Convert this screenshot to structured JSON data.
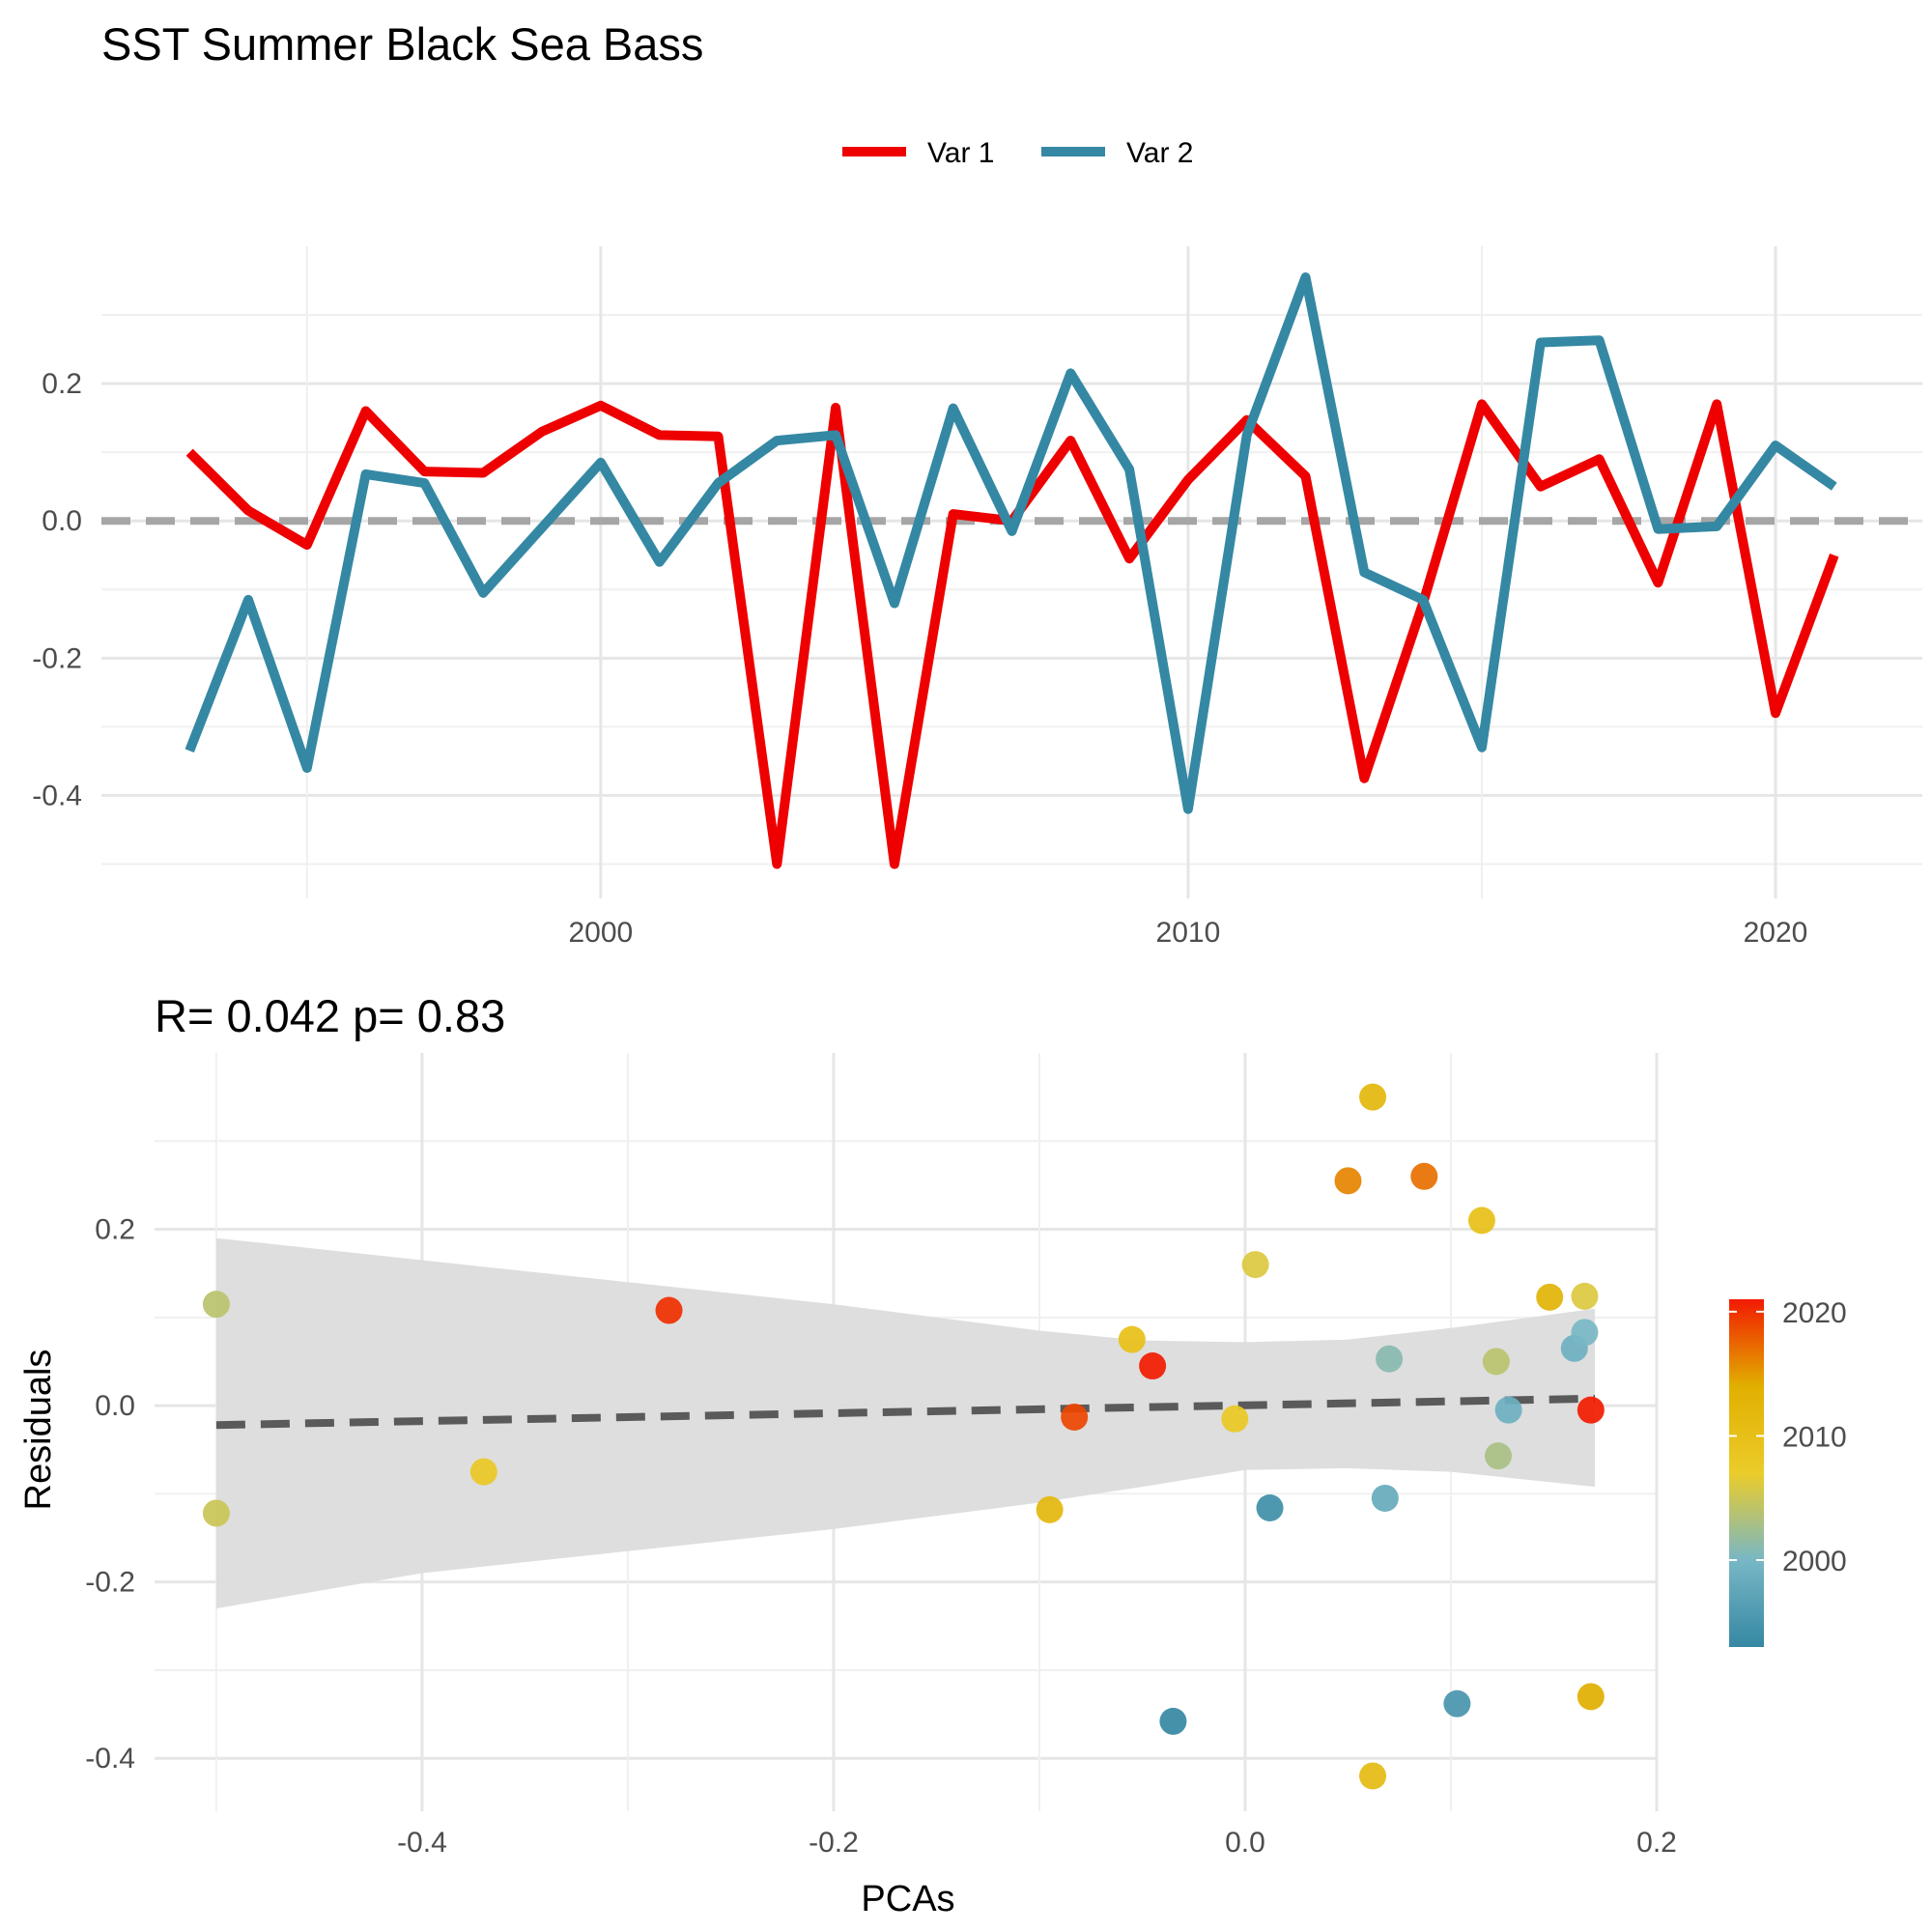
{
  "title": "SST Summer Black Sea Bass",
  "chart_data": [
    {
      "type": "line",
      "title": "SST Summer Black Sea Bass",
      "xlabel": "",
      "ylabel": "",
      "x": [
        1993,
        1994,
        1995,
        1996,
        1997,
        1998,
        1999,
        2000,
        2001,
        2002,
        2003,
        2004,
        2005,
        2006,
        2007,
        2008,
        2009,
        2010,
        2011,
        2012,
        2013,
        2014,
        2015,
        2016,
        2017,
        2018,
        2019,
        2020,
        2021
      ],
      "series": [
        {
          "name": "Var 1",
          "color": "#ee0000",
          "values": [
            0.1,
            0.015,
            -0.035,
            0.16,
            0.072,
            0.07,
            0.13,
            0.168,
            0.125,
            0.123,
            -0.5,
            0.165,
            -0.5,
            0.01,
            0.0,
            0.117,
            -0.055,
            0.06,
            0.147,
            0.065,
            -0.375,
            -0.12,
            0.17,
            0.05,
            0.09,
            -0.09,
            0.17,
            -0.28,
            -0.05
          ]
        },
        {
          "name": "Var 2",
          "color": "#3588a3",
          "values": [
            -0.335,
            -0.115,
            -0.36,
            0.068,
            0.055,
            -0.105,
            -0.01,
            0.085,
            -0.06,
            0.055,
            0.117,
            0.125,
            -0.12,
            0.164,
            -0.015,
            0.215,
            0.075,
            -0.42,
            0.125,
            0.355,
            -0.075,
            -0.115,
            -0.33,
            0.26,
            0.263,
            -0.012,
            -0.008,
            0.11,
            0.05
          ]
        }
      ],
      "reference_line": 0.0,
      "xlim": [
        1991.5,
        2022.5
      ],
      "ylim": [
        -0.55,
        0.4
      ],
      "x_ticks": [
        "2000",
        "2010",
        "2020"
      ],
      "y_ticks": [
        "-0.4",
        "-0.2",
        "0.0",
        "0.2"
      ],
      "legend": {
        "position": "top",
        "entries": [
          "Var 1",
          "Var 2"
        ]
      },
      "grid": true
    },
    {
      "type": "scatter",
      "title": "R= 0.042  p= 0.83",
      "xlabel": "PCAs",
      "ylabel": "Residuals",
      "xlim": [
        -0.53,
        0.2
      ],
      "ylim": [
        -0.46,
        0.4
      ],
      "x_ticks": [
        "-0.4",
        "-0.2",
        "0.0",
        "0.2"
      ],
      "y_ticks": [
        "-0.4",
        "-0.2",
        "0.0",
        "0.2"
      ],
      "points": [
        {
          "x": -0.5,
          "y": 0.115,
          "year": 2004
        },
        {
          "x": -0.5,
          "y": -0.122,
          "year": 2005
        },
        {
          "x": -0.37,
          "y": -0.075,
          "year": 2008
        },
        {
          "x": -0.28,
          "y": 0.108,
          "year": 2020
        },
        {
          "x": -0.095,
          "y": -0.118,
          "year": 2012
        },
        {
          "x": -0.083,
          "y": -0.013,
          "year": 2019
        },
        {
          "x": -0.055,
          "y": 0.075,
          "year": 2010
        },
        {
          "x": -0.045,
          "y": 0.045,
          "year": 2021
        },
        {
          "x": -0.035,
          "y": -0.358,
          "year": 1993
        },
        {
          "x": -0.005,
          "y": -0.015,
          "year": 2008
        },
        {
          "x": 0.005,
          "y": 0.16,
          "year": 2006
        },
        {
          "x": 0.012,
          "y": -0.116,
          "year": 1994
        },
        {
          "x": 0.05,
          "y": 0.255,
          "year": 2016
        },
        {
          "x": 0.062,
          "y": 0.35,
          "year": 2012
        },
        {
          "x": 0.062,
          "y": -0.42,
          "year": 2011
        },
        {
          "x": 0.068,
          "y": -0.105,
          "year": 1998
        },
        {
          "x": 0.07,
          "y": 0.053,
          "year": 2001
        },
        {
          "x": 0.087,
          "y": 0.26,
          "year": 2017
        },
        {
          "x": 0.103,
          "y": -0.338,
          "year": 1995
        },
        {
          "x": 0.115,
          "y": 0.21,
          "year": 2010
        },
        {
          "x": 0.122,
          "y": 0.05,
          "year": 2004
        },
        {
          "x": 0.123,
          "y": -0.057,
          "year": 2003
        },
        {
          "x": 0.128,
          "y": -0.005,
          "year": 1999
        },
        {
          "x": 0.148,
          "y": 0.123,
          "year": 2013
        },
        {
          "x": 0.16,
          "y": 0.065,
          "year": 1999
        },
        {
          "x": 0.165,
          "y": 0.124,
          "year": 2006
        },
        {
          "x": 0.165,
          "y": 0.083,
          "year": 2000
        },
        {
          "x": 0.168,
          "y": -0.005,
          "year": 2021
        },
        {
          "x": 0.168,
          "y": -0.33,
          "year": 2014
        }
      ],
      "fit_line": {
        "x": [
          -0.5,
          0.17
        ],
        "y": [
          -0.022,
          0.008
        ]
      },
      "confidence_band": {
        "x": [
          -0.5,
          -0.4,
          -0.3,
          -0.2,
          -0.1,
          -0.05,
          0.0,
          0.05,
          0.1,
          0.17
        ],
        "upper": [
          0.19,
          0.165,
          0.14,
          0.115,
          0.085,
          0.074,
          0.072,
          0.075,
          0.088,
          0.11
        ],
        "lower": [
          -0.23,
          -0.19,
          -0.165,
          -0.14,
          -0.11,
          -0.092,
          -0.073,
          -0.071,
          -0.075,
          -0.092
        ]
      },
      "colorbar": {
        "title": "",
        "min": 1993,
        "max": 2021,
        "ticks": [
          "2000",
          "2010",
          "2020"
        ],
        "colors": [
          "#3588a3",
          "#78b7c5",
          "#ebcc2a",
          "#e1af00",
          "#f21a00"
        ]
      },
      "grid": true
    }
  ]
}
